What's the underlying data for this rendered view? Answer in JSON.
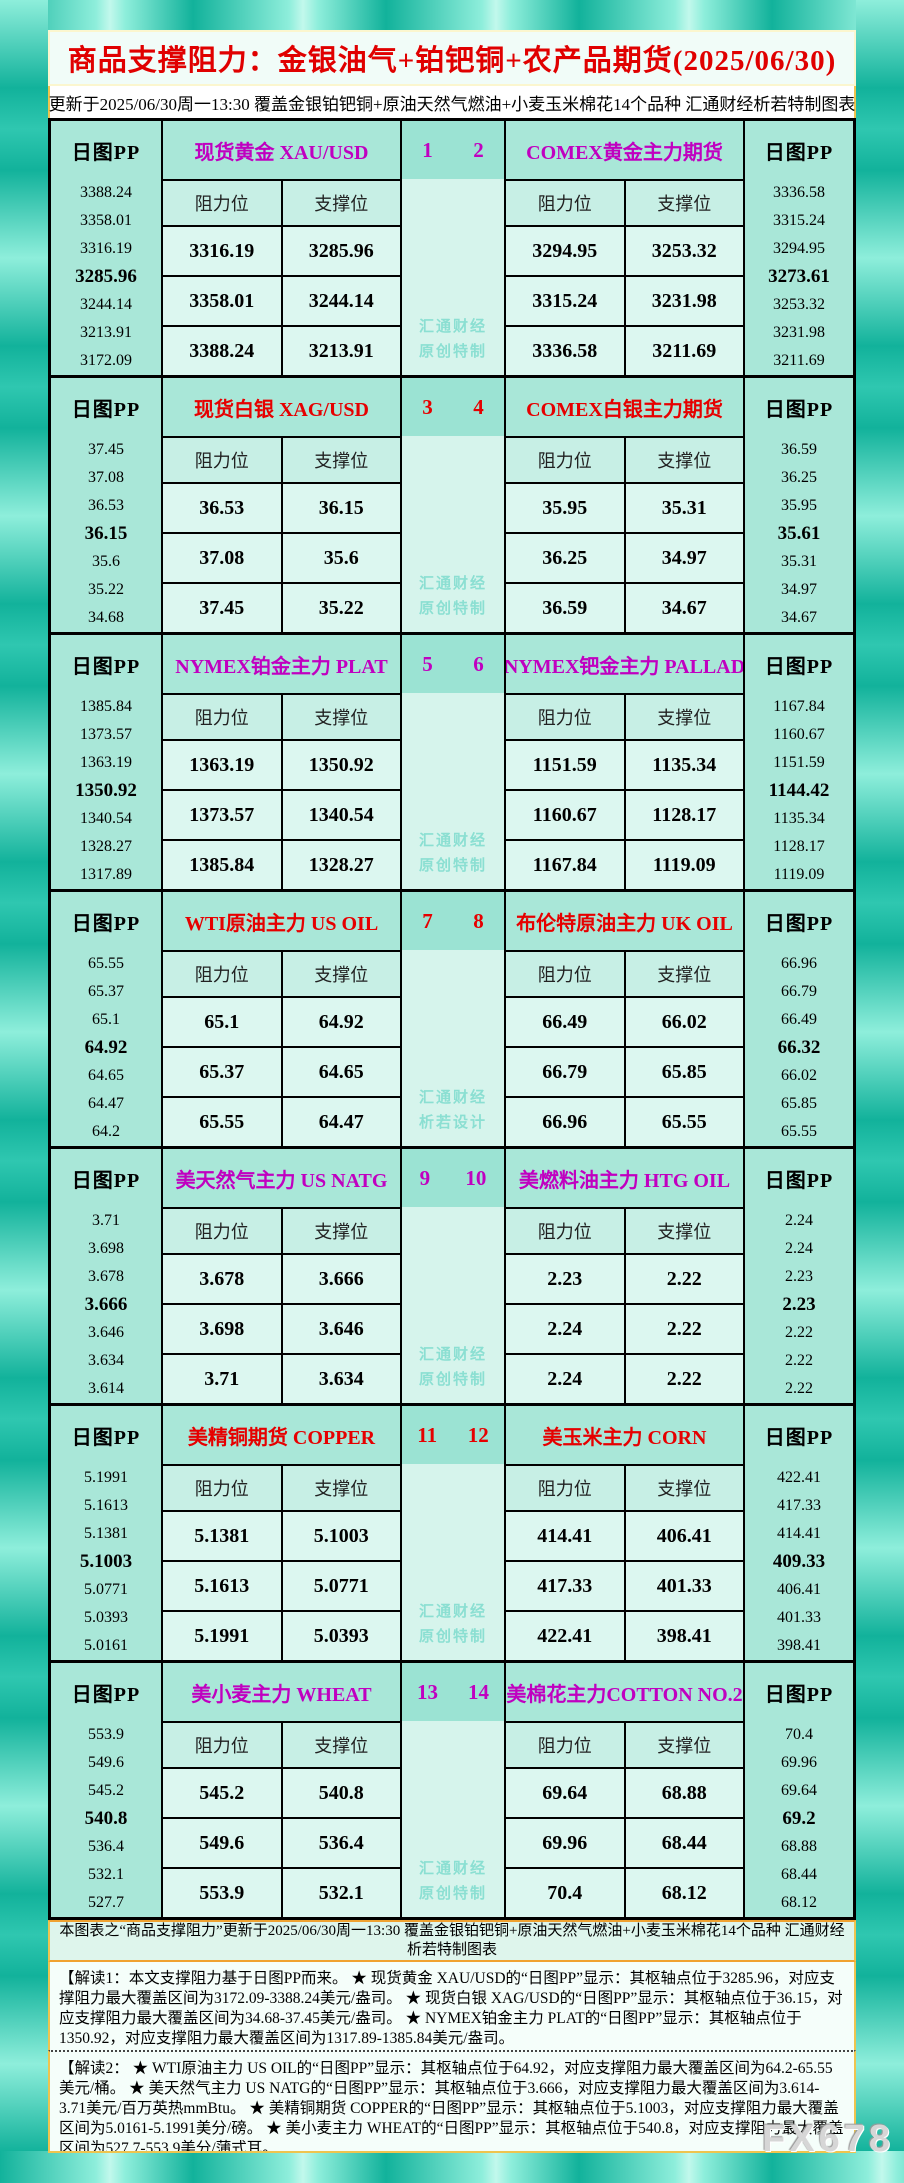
{
  "title": "商品支撑阻力：金银油气+铂钯铜+农产品期货(2025/06/30)",
  "subtitle": "更新于2025/06/30周一13:30 覆盖金银铂钯铜+原油天然气燃油+小麦玉米棉花14个品种 汇通财经析若特制图表",
  "labels": {
    "pp": "日图PP",
    "resistance": "阻力位",
    "support": "支撑位"
  },
  "colors": {
    "magenta": "#c000c0",
    "red": "#e60000",
    "title_red": "#e00000",
    "watermark_teal": "#8bdfd2",
    "frame_teal": "#2fc7b0"
  },
  "panels": [
    {
      "accent": "magenta",
      "nums": [
        "1",
        "2"
      ],
      "watermark": [
        "汇通财经",
        "原创特制"
      ],
      "left": {
        "name": "现货黄金 XAU/USD",
        "pivot_index": 3,
        "pp": [
          "3388.24",
          "3358.01",
          "3316.19",
          "3285.96",
          "3244.14",
          "3213.91",
          "3172.09"
        ],
        "rows": [
          [
            "3316.19",
            "3285.96"
          ],
          [
            "3358.01",
            "3244.14"
          ],
          [
            "3388.24",
            "3213.91"
          ]
        ]
      },
      "right": {
        "name": "COMEX黄金主力期货",
        "pivot_index": 3,
        "pp": [
          "3336.58",
          "3315.24",
          "3294.95",
          "3273.61",
          "3253.32",
          "3231.98",
          "3211.69"
        ],
        "rows": [
          [
            "3294.95",
            "3253.32"
          ],
          [
            "3315.24",
            "3231.98"
          ],
          [
            "3336.58",
            "3211.69"
          ]
        ]
      }
    },
    {
      "accent": "red",
      "nums": [
        "3",
        "4"
      ],
      "watermark": [
        "汇通财经",
        "原创特制"
      ],
      "left": {
        "name": "现货白银 XAG/USD",
        "pivot_index": 3,
        "pp": [
          "37.45",
          "37.08",
          "36.53",
          "36.15",
          "35.6",
          "35.22",
          "34.68"
        ],
        "rows": [
          [
            "36.53",
            "36.15"
          ],
          [
            "37.08",
            "35.6"
          ],
          [
            "37.45",
            "35.22"
          ]
        ]
      },
      "right": {
        "name": "COMEX白银主力期货",
        "pivot_index": 3,
        "pp": [
          "36.59",
          "36.25",
          "35.95",
          "35.61",
          "35.31",
          "34.97",
          "34.67"
        ],
        "rows": [
          [
            "35.95",
            "35.31"
          ],
          [
            "36.25",
            "34.97"
          ],
          [
            "36.59",
            "34.67"
          ]
        ]
      }
    },
    {
      "accent": "magenta",
      "nums": [
        "5",
        "6"
      ],
      "watermark": [
        "汇通财经",
        "原创特制"
      ],
      "left": {
        "name": "NYMEX铂金主力 PLAT",
        "pivot_index": 3,
        "pp": [
          "1385.84",
          "1373.57",
          "1363.19",
          "1350.92",
          "1340.54",
          "1328.27",
          "1317.89"
        ],
        "rows": [
          [
            "1363.19",
            "1350.92"
          ],
          [
            "1373.57",
            "1340.54"
          ],
          [
            "1385.84",
            "1328.27"
          ]
        ]
      },
      "right": {
        "name": "NYMEX钯金主力 PALLAD",
        "pivot_index": 3,
        "pp": [
          "1167.84",
          "1160.67",
          "1151.59",
          "1144.42",
          "1135.34",
          "1128.17",
          "1119.09"
        ],
        "rows": [
          [
            "1151.59",
            "1135.34"
          ],
          [
            "1160.67",
            "1128.17"
          ],
          [
            "1167.84",
            "1119.09"
          ]
        ]
      }
    },
    {
      "accent": "red",
      "nums": [
        "7",
        "8"
      ],
      "watermark": [
        "汇通财经",
        "析若设计"
      ],
      "left": {
        "name": "WTI原油主力 US OIL",
        "pivot_index": 3,
        "pp": [
          "65.55",
          "65.37",
          "65.1",
          "64.92",
          "64.65",
          "64.47",
          "64.2"
        ],
        "rows": [
          [
            "65.1",
            "64.92"
          ],
          [
            "65.37",
            "64.65"
          ],
          [
            "65.55",
            "64.47"
          ]
        ]
      },
      "right": {
        "name": "布伦特原油主力 UK OIL",
        "pivot_index": 3,
        "pp": [
          "66.96",
          "66.79",
          "66.49",
          "66.32",
          "66.02",
          "65.85",
          "65.55"
        ],
        "rows": [
          [
            "66.49",
            "66.02"
          ],
          [
            "66.79",
            "65.85"
          ],
          [
            "66.96",
            "65.55"
          ]
        ]
      }
    },
    {
      "accent": "magenta",
      "nums": [
        "9",
        "10"
      ],
      "watermark": [
        "汇通财经",
        "原创特制"
      ],
      "left": {
        "name": "美天然气主力 US NATG",
        "pivot_index": 3,
        "pp": [
          "3.71",
          "3.698",
          "3.678",
          "3.666",
          "3.646",
          "3.634",
          "3.614"
        ],
        "rows": [
          [
            "3.678",
            "3.666"
          ],
          [
            "3.698",
            "3.646"
          ],
          [
            "3.71",
            "3.634"
          ]
        ]
      },
      "right": {
        "name": "美燃料油主力 HTG OIL",
        "pivot_index": 3,
        "pp": [
          "2.24",
          "2.24",
          "2.23",
          "2.23",
          "2.22",
          "2.22",
          "2.22"
        ],
        "rows": [
          [
            "2.23",
            "2.22"
          ],
          [
            "2.24",
            "2.22"
          ],
          [
            "2.24",
            "2.22"
          ]
        ]
      }
    },
    {
      "accent": "red",
      "nums": [
        "11",
        "12"
      ],
      "watermark": [
        "汇通财经",
        "原创特制"
      ],
      "left": {
        "name": "美精铜期货 COPPER",
        "pivot_index": 3,
        "pp": [
          "5.1991",
          "5.1613",
          "5.1381",
          "5.1003",
          "5.0771",
          "5.0393",
          "5.0161"
        ],
        "rows": [
          [
            "5.1381",
            "5.1003"
          ],
          [
            "5.1613",
            "5.0771"
          ],
          [
            "5.1991",
            "5.0393"
          ]
        ]
      },
      "right": {
        "name": "美玉米主力 CORN",
        "pivot_index": 3,
        "pp": [
          "422.41",
          "417.33",
          "414.41",
          "409.33",
          "406.41",
          "401.33",
          "398.41"
        ],
        "rows": [
          [
            "414.41",
            "406.41"
          ],
          [
            "417.33",
            "401.33"
          ],
          [
            "422.41",
            "398.41"
          ]
        ]
      }
    },
    {
      "accent": "magenta",
      "nums": [
        "13",
        "14"
      ],
      "watermark": [
        "汇通财经",
        "原创特制"
      ],
      "left": {
        "name": "美小麦主力 WHEAT",
        "pivot_index": 3,
        "pp": [
          "553.9",
          "549.6",
          "545.2",
          "540.8",
          "536.4",
          "532.1",
          "527.7"
        ],
        "rows": [
          [
            "545.2",
            "540.8"
          ],
          [
            "549.6",
            "536.4"
          ],
          [
            "553.9",
            "532.1"
          ]
        ]
      },
      "right": {
        "name": "美棉花主力COTTON NO.2",
        "pivot_index": 3,
        "pp": [
          "70.4",
          "69.96",
          "69.64",
          "69.2",
          "68.88",
          "68.44",
          "68.12"
        ],
        "rows": [
          [
            "69.64",
            "68.88"
          ],
          [
            "69.96",
            "68.44"
          ],
          [
            "70.4",
            "68.12"
          ]
        ]
      }
    }
  ],
  "footer": {
    "summary": "本图表之“商品支撑阻力”更新于2025/06/30周一13:30 覆盖金银铂钯铜+原油天然气燃油+小麦玉米棉花14个品种 汇通财经析若特制图表",
    "note1": "【解读1：本文支撑阻力基于日图PP而来。 ★ 现货黄金 XAU/USD的“日图PP”显示：其枢轴点位于3285.96，对应支撑阻力最大覆盖区间为3172.09-3388.24美元/盎司。 ★ 现货白银 XAG/USD的“日图PP”显示：其枢轴点位于36.15，对应支撑阻力最大覆盖区间为34.68-37.45美元/盎司。 ★ NYMEX铂金主力 PLAT的“日图PP”显示：其枢轴点位于1350.92，对应支撑阻力最大覆盖区间为1317.89-1385.84美元/盎司。",
    "note2": "【解读2： ★ WTI原油主力 US OIL的“日图PP”显示：其枢轴点位于64.92，对应支撑阻力最大覆盖区间为64.2-65.55美元/桶。 ★ 美天然气主力 US NATG的“日图PP”显示：其枢轴点位于3.666，对应支撑阻力最大覆盖区间为3.614-3.71美元/百万英热mmBtu。 ★ 美精铜期货 COPPER的“日图PP”显示：其枢轴点位于5.1003，对应支撑阻力最大覆盖区间为5.0161-5.1991美分/磅。 ★ 美小麦主力 WHEAT的“日图PP”显示：其枢轴点位于540.8，对应支撑阻力最大覆盖区间为527.7-553.9美分/蒲式耳。",
    "brand": "FX678"
  }
}
